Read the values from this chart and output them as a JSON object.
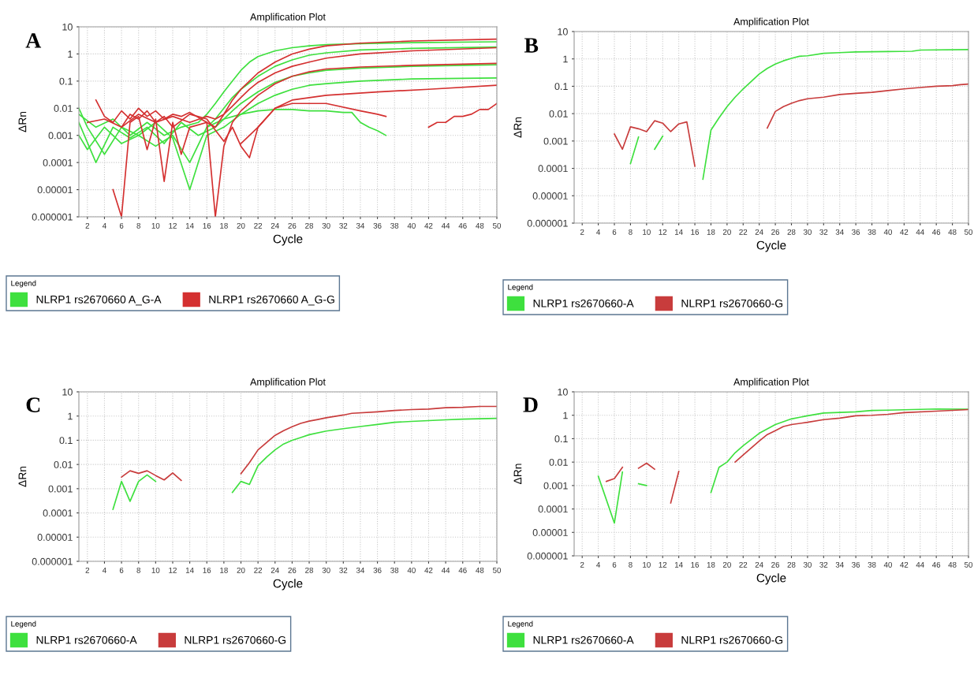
{
  "chart_data": [
    {
      "type": "line",
      "title": "Amplification Plot",
      "xlabel": "Cycle",
      "ylabel": "ΔRn",
      "annotations": [
        "A"
      ],
      "legend_title": "Legend",
      "legend": "bottom",
      "log": "y",
      "grid": true,
      "xlim": [
        1,
        50
      ],
      "xticks": [
        2,
        4,
        6,
        8,
        10,
        12,
        14,
        16,
        18,
        20,
        22,
        24,
        26,
        28,
        30,
        32,
        34,
        36,
        38,
        40,
        42,
        44,
        46,
        48,
        50
      ],
      "ylim": [
        1e-06,
        10
      ],
      "yticks": [
        {
          "value": 1e-06,
          "label": "0.000001"
        },
        {
          "value": 1e-05,
          "label": "0.00001"
        },
        {
          "value": 0.0001,
          "label": "0.0001"
        },
        {
          "value": 0.001,
          "label": "0.001"
        },
        {
          "value": 0.01,
          "label": "0.01"
        },
        {
          "value": 0.1,
          "label": "0.1"
        },
        1,
        10
      ],
      "series": [
        {
          "name": "NLRP1 rs2670660 A_G-A",
          "color": "#3ee03e",
          "x": [
            1,
            3,
            5,
            7,
            9,
            11,
            13,
            15,
            16,
            17,
            18,
            19,
            20,
            21,
            22,
            24,
            26,
            28,
            30,
            34,
            40,
            50
          ],
          "values": [
            0.006,
            0.002,
            0.004,
            0.001,
            0.003,
            0.001,
            0.002,
            0.003,
            0.006,
            0.015,
            0.04,
            0.1,
            0.25,
            0.5,
            0.8,
            1.3,
            1.7,
            2,
            2.2,
            2.4,
            2.6,
            2.8
          ]
        },
        {
          "color": "#3ee03e",
          "x": [
            1,
            2,
            4,
            6,
            8,
            10,
            12,
            14,
            16,
            17,
            18,
            19,
            20,
            22,
            24,
            26,
            28,
            30,
            34,
            40,
            50
          ],
          "values": [
            0.001,
            0.0003,
            0.002,
            0.0005,
            0.001,
            0.0004,
            0.001,
            0.0001,
            0.002,
            0.004,
            0.01,
            0.025,
            0.05,
            0.15,
            0.35,
            0.6,
            0.9,
            1.1,
            1.4,
            1.6,
            1.8
          ]
        },
        {
          "color": "#3ee03e",
          "x": [
            1,
            3,
            5,
            7,
            9,
            11,
            13,
            15,
            17,
            18,
            19,
            20,
            22,
            24,
            26,
            28,
            30,
            34,
            40,
            50
          ],
          "values": [
            0.003,
            0.0001,
            0.002,
            0.0008,
            0.002,
            0.0005,
            0.003,
            0.001,
            0.002,
            0.004,
            0.008,
            0.015,
            0.04,
            0.09,
            0.15,
            0.2,
            0.25,
            0.3,
            0.35,
            0.4
          ]
        },
        {
          "color": "#3ee03e",
          "x": [
            1,
            2,
            4,
            6,
            8,
            10,
            12,
            14,
            16,
            18,
            20,
            22,
            24,
            26,
            28,
            30,
            34,
            40,
            50
          ],
          "values": [
            0.01,
            0.002,
            0.0002,
            0.002,
            0.001,
            0.003,
            0.0008,
            1e-05,
            0.001,
            0.002,
            0.006,
            0.015,
            0.03,
            0.05,
            0.07,
            0.08,
            0.1,
            0.12,
            0.13
          ]
        },
        {
          "color": "#3ee03e",
          "x": [
            16,
            18,
            20,
            22,
            24,
            26,
            28,
            30,
            32,
            33,
            34,
            35,
            36,
            37
          ],
          "values": [
            0.002,
            0.004,
            0.006,
            0.008,
            0.009,
            0.009,
            0.008,
            0.008,
            0.007,
            0.007,
            0.003,
            0.002,
            0.0015,
            0.001
          ]
        },
        {
          "name": "NLRP1 rs2670660 A_G-G",
          "color": "#d43030",
          "x": [
            3,
            4,
            5,
            6,
            7,
            8,
            9,
            10,
            11,
            12,
            13,
            14,
            16,
            17,
            18,
            19,
            20,
            21,
            22,
            24,
            26,
            28,
            30,
            34,
            40,
            50
          ],
          "values": [
            0.02,
            0.005,
            0.003,
            0.008,
            0.004,
            0.01,
            0.005,
            0.008,
            0.004,
            0.006,
            0.005,
            0.007,
            0.003,
            0.002,
            0.006,
            0.02,
            0.05,
            0.1,
            0.2,
            0.5,
            1,
            1.5,
            2,
            2.5,
            3,
            3.5
          ]
        },
        {
          "color": "#d43030",
          "x": [
            5,
            6,
            7,
            8,
            9,
            10,
            11,
            12,
            13,
            14,
            16,
            17,
            18,
            19,
            20,
            22,
            24,
            26,
            28,
            30,
            34,
            40,
            50
          ],
          "values": [
            1e-05,
            1e-06,
            0.003,
            0.005,
            0.0003,
            0.004,
            2e-05,
            0.003,
            0.0002,
            0.002,
            0.003,
            1e-06,
            0.0004,
            0.003,
            0.008,
            0.03,
            0.08,
            0.15,
            0.22,
            0.28,
            0.33,
            0.38,
            0.45
          ]
        },
        {
          "color": "#d43030",
          "x": [
            6,
            7,
            8,
            9,
            10,
            11,
            12,
            14,
            16,
            18,
            19,
            20,
            21,
            22,
            24,
            26,
            30,
            36,
            42,
            50
          ],
          "values": [
            0.002,
            0.006,
            0.004,
            0.008,
            0.003,
            0.005,
            0.002,
            0.006,
            0.004,
            0.0006,
            0.002,
            0.0004,
            0.00015,
            0.002,
            0.01,
            0.02,
            0.03,
            0.04,
            0.05,
            0.07
          ]
        },
        {
          "color": "#d43030",
          "x": [
            20,
            22,
            24,
            26,
            30,
            34,
            36,
            37
          ],
          "values": [
            0.0005,
            0.002,
            0.01,
            0.015,
            0.015,
            0.008,
            0.006,
            0.005
          ]
        },
        {
          "color": "#d43030",
          "x": [
            42,
            43,
            44,
            45,
            46,
            47,
            48,
            49,
            50
          ],
          "values": [
            0.002,
            0.003,
            0.003,
            0.005,
            0.005,
            0.006,
            0.009,
            0.009,
            0.015
          ]
        },
        {
          "color": "#d43030",
          "x": [
            2,
            4,
            6,
            8,
            10,
            12,
            14,
            16,
            17,
            18,
            19,
            20,
            21,
            22,
            24,
            26,
            28,
            30,
            34,
            40,
            50
          ],
          "values": [
            0.003,
            0.004,
            0.002,
            0.006,
            0.003,
            0.005,
            0.003,
            0.005,
            0.004,
            0.006,
            0.012,
            0.025,
            0.05,
            0.09,
            0.2,
            0.35,
            0.5,
            0.7,
            1,
            1.3,
            1.7
          ]
        }
      ]
    },
    {
      "type": "line",
      "title": "Amplification Plot",
      "xlabel": "Cycle",
      "ylabel": "ΔRn",
      "annotations": [
        "B"
      ],
      "legend_title": "Legend",
      "legend": "bottom",
      "log": "y",
      "grid": true,
      "xlim": [
        1,
        50
      ],
      "xticks": [
        2,
        4,
        6,
        8,
        10,
        12,
        14,
        16,
        18,
        20,
        22,
        24,
        26,
        28,
        30,
        32,
        34,
        36,
        38,
        40,
        42,
        44,
        46,
        48,
        50
      ],
      "ylim": [
        1e-06,
        10
      ],
      "yticks": [
        {
          "value": 1e-06,
          "label": "0.000001"
        },
        {
          "value": 1e-05,
          "label": "0.00001"
        },
        {
          "value": 0.0001,
          "label": "0.0001"
        },
        {
          "value": 0.001,
          "label": "0.001"
        },
        {
          "value": 0.01,
          "label": "0.01"
        },
        {
          "value": 0.1,
          "label": "0.1"
        },
        1,
        10
      ],
      "series": [
        {
          "name": "NLRP1 rs2670660-A",
          "color": "#3ee03e",
          "x": [
            8,
            9,
            10,
            11,
            12,
            14,
            17,
            18,
            19,
            20,
            21,
            22,
            23,
            24,
            25,
            26,
            27,
            28,
            29,
            30,
            32,
            34,
            36,
            40,
            43,
            44,
            50
          ],
          "values": [
            0.00015,
            0.0014,
            null,
            0.0005,
            0.0015,
            null,
            4e-05,
            0.0025,
            0.007,
            0.018,
            0.04,
            0.08,
            0.15,
            0.28,
            0.45,
            0.65,
            0.85,
            1.05,
            1.25,
            1.3,
            1.6,
            1.7,
            1.8,
            1.85,
            1.9,
            2.1,
            2.2
          ]
        },
        {
          "name": "NLRP1 rs2670660-G",
          "color": "#c83c3c",
          "x": [
            6,
            7,
            8,
            9,
            10,
            11,
            12,
            13,
            14,
            15,
            16,
            20,
            25,
            26,
            27,
            28,
            29,
            30,
            32,
            34,
            36,
            38,
            40,
            42,
            44,
            46,
            48,
            49,
            50
          ],
          "values": [
            0.0018,
            0.0005,
            0.0033,
            0.0028,
            0.0022,
            0.0055,
            0.0045,
            0.0022,
            0.0042,
            0.005,
            0.00012,
            null,
            0.003,
            0.012,
            0.018,
            0.024,
            0.03,
            0.035,
            0.04,
            0.05,
            0.055,
            0.06,
            0.07,
            0.08,
            0.09,
            0.1,
            0.105,
            0.115,
            0.12
          ]
        }
      ]
    },
    {
      "type": "line",
      "title": "Amplification Plot",
      "xlabel": "Cycle",
      "ylabel": "ΔRn",
      "annotations": [
        "C"
      ],
      "legend_title": "Legend",
      "legend": "bottom",
      "log": "y",
      "grid": true,
      "xlim": [
        1,
        50
      ],
      "xticks": [
        2,
        4,
        6,
        8,
        10,
        12,
        14,
        16,
        18,
        20,
        22,
        24,
        26,
        28,
        30,
        32,
        34,
        36,
        38,
        40,
        42,
        44,
        46,
        48,
        50
      ],
      "ylim": [
        1e-06,
        10
      ],
      "yticks": [
        {
          "value": 1e-06,
          "label": "0.000001"
        },
        {
          "value": 1e-05,
          "label": "0.00001"
        },
        {
          "value": 0.0001,
          "label": "0.0001"
        },
        {
          "value": 0.001,
          "label": "0.001"
        },
        {
          "value": 0.01,
          "label": "0.01"
        },
        {
          "value": 0.1,
          "label": "0.1"
        },
        1,
        10
      ],
      "series": [
        {
          "name": "NLRP1 rs2670660-A",
          "color": "#3ee03e",
          "x": [
            5,
            6,
            7,
            8,
            9,
            10,
            15,
            19,
            20,
            21,
            22,
            23,
            24,
            25,
            26,
            27,
            28,
            30,
            32,
            34,
            36,
            38,
            40,
            44,
            46,
            50
          ],
          "values": [
            0.00014,
            0.002,
            0.0003,
            0.002,
            0.0037,
            0.002,
            null,
            0.0007,
            0.002,
            0.0015,
            0.009,
            0.02,
            0.04,
            0.07,
            0.1,
            0.13,
            0.17,
            0.24,
            0.3,
            0.37,
            0.45,
            0.55,
            0.6,
            0.7,
            0.75,
            0.8
          ]
        },
        {
          "name": "NLRP1 rs2670660-G",
          "color": "#c83c3c",
          "x": [
            6,
            7,
            8,
            9,
            10,
            11,
            12,
            13,
            16,
            20,
            21,
            22,
            23,
            24,
            25,
            26,
            27,
            28,
            29,
            30,
            32,
            33,
            36,
            38,
            40,
            42,
            44,
            46,
            48,
            50
          ],
          "values": [
            0.003,
            0.0055,
            0.0043,
            0.0055,
            0.0035,
            0.0023,
            0.0045,
            0.0022,
            null,
            0.0042,
            0.012,
            0.04,
            0.08,
            0.16,
            0.25,
            0.36,
            0.5,
            0.62,
            0.72,
            0.85,
            1.1,
            1.3,
            1.5,
            1.7,
            1.85,
            1.95,
            2.2,
            2.3,
            2.5,
            2.5
          ]
        }
      ]
    },
    {
      "type": "line",
      "title": "Amplification Plot",
      "xlabel": "Cycle",
      "ylabel": "ΔRn",
      "annotations": [
        "D"
      ],
      "legend_title": "Legend",
      "legend": "bottom",
      "log": "y",
      "grid": true,
      "xlim": [
        1,
        50
      ],
      "xticks": [
        2,
        4,
        6,
        8,
        10,
        12,
        14,
        16,
        18,
        20,
        22,
        24,
        26,
        28,
        30,
        32,
        34,
        36,
        38,
        40,
        42,
        44,
        46,
        48,
        50
      ],
      "ylim": [
        1e-06,
        10
      ],
      "yticks": [
        {
          "value": 1e-06,
          "label": "0.000001"
        },
        {
          "value": 1e-05,
          "label": "0.00001"
        },
        {
          "value": 0.0001,
          "label": "0.0001"
        },
        {
          "value": 0.001,
          "label": "0.001"
        },
        {
          "value": 0.01,
          "label": "0.01"
        },
        {
          "value": 0.1,
          "label": "0.1"
        },
        1,
        10
      ],
      "series": [
        {
          "name": "NLRP1 rs2670660-A",
          "color": "#3ee03e",
          "x": [
            4,
            6,
            7,
            8,
            9,
            10,
            14,
            18,
            19,
            20,
            21,
            22,
            24,
            26,
            28,
            30,
            32,
            36,
            38,
            40,
            46,
            50
          ],
          "values": [
            0.0025,
            2.5e-05,
            0.0038,
            null,
            0.0012,
            0.001,
            null,
            0.0005,
            0.006,
            0.01,
            0.025,
            0.05,
            0.17,
            0.4,
            0.7,
            0.95,
            1.25,
            1.4,
            1.6,
            1.65,
            1.85,
            1.8
          ]
        },
        {
          "name": "NLRP1 rs2670660-G",
          "color": "#c83c3c",
          "x": [
            5,
            6,
            7,
            8,
            9,
            10,
            11,
            12,
            13,
            14,
            17,
            21,
            22,
            24,
            25,
            26,
            27,
            28,
            30,
            32,
            34,
            36,
            38,
            40,
            42,
            46,
            50
          ],
          "values": [
            0.0015,
            0.002,
            0.006,
            null,
            0.0055,
            0.009,
            0.005,
            null,
            0.00018,
            0.004,
            null,
            0.01,
            0.02,
            0.08,
            0.15,
            0.22,
            0.33,
            0.4,
            0.5,
            0.65,
            0.75,
            0.95,
            1.0,
            1.1,
            1.3,
            1.5,
            1.75
          ]
        }
      ]
    }
  ]
}
